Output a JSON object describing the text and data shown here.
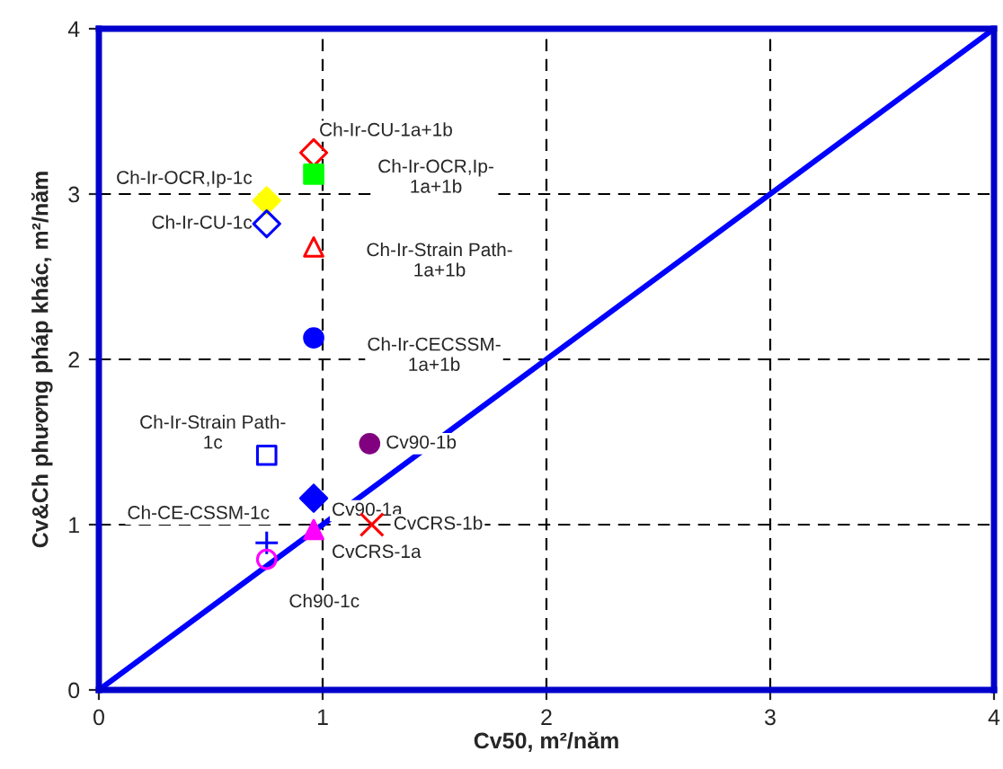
{
  "chart_data": {
    "type": "scatter",
    "xlabel": "Cv50, m²/năm",
    "ylabel": "Cv&Ch phương pháp khác, m²/năm",
    "xlim": [
      0,
      4
    ],
    "ylim": [
      0,
      4
    ],
    "xticks": [
      0,
      1,
      2,
      3,
      4
    ],
    "yticks": [
      0,
      1,
      2,
      3,
      4
    ],
    "grid": true,
    "series": [
      {
        "name": "Ch-Ir-CU-1a+1b",
        "color": "#ff0000",
        "marker": "diamond-open",
        "x": [
          0.96
        ],
        "values": [
          3.25
        ]
      },
      {
        "name": "Ch-Ir-OCR,Ip-\n1a+1b",
        "color": "#00ff00",
        "marker": "square",
        "x": [
          0.96
        ],
        "values": [
          3.12
        ]
      },
      {
        "name": "Ch-Ir-OCR,Ip-1c",
        "color": "#ffff00",
        "marker": "diamond",
        "x": [
          0.75
        ],
        "values": [
          2.96
        ]
      },
      {
        "name": "Ch-Ir-CU-1c",
        "color": "#0000ff",
        "marker": "diamond-open",
        "x": [
          0.75
        ],
        "values": [
          2.82
        ]
      },
      {
        "name": "Ch-Ir-Strain Path-\n1a+1b",
        "color": "#ff0000",
        "marker": "triangle-open",
        "x": [
          0.96
        ],
        "values": [
          2.68
        ]
      },
      {
        "name": "Ch-Ir-CECSSM-\n1a+1b",
        "color": "#0000ff",
        "marker": "circle",
        "x": [
          0.96
        ],
        "values": [
          2.13
        ]
      },
      {
        "name": "Ch-Ir-Strain Path-\n1c",
        "color": "#0000ff",
        "marker": "square-open",
        "x": [
          0.75
        ],
        "values": [
          1.42
        ]
      },
      {
        "name": "Cv90-1b",
        "color": "#800080",
        "marker": "circle",
        "x": [
          1.21
        ],
        "values": [
          1.49
        ]
      },
      {
        "name": "Cv90-1a",
        "color": "#0000ff",
        "marker": "diamond",
        "x": [
          0.96
        ],
        "values": [
          1.16
        ]
      },
      {
        "name": "CvCRS-1a",
        "color": "#ff00ff",
        "marker": "triangle",
        "x": [
          0.96
        ],
        "values": [
          0.97
        ]
      },
      {
        "name": "CvCRS-1b",
        "color": "#ff0000",
        "marker": "x",
        "x": [
          1.22
        ],
        "values": [
          1.0
        ]
      },
      {
        "name": "Ch-CE-CSSM-1c",
        "color": "#0000ff",
        "marker": "plus",
        "x": [
          0.75
        ],
        "values": [
          0.89
        ]
      },
      {
        "name": "Ch90-1c",
        "color": "#ff00ff",
        "marker": "circle-open",
        "x": [
          0.75
        ],
        "values": [
          0.79
        ]
      },
      {
        "type": "line",
        "color": "#0000ff",
        "marker": "none",
        "x": [
          0,
          4
        ],
        "values": [
          0,
          4
        ]
      }
    ]
  }
}
